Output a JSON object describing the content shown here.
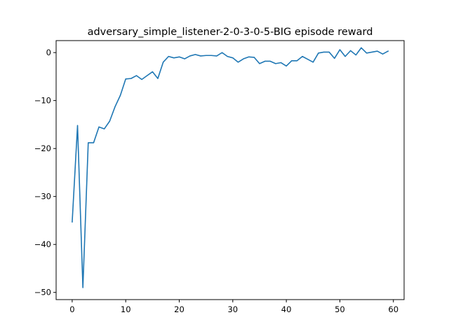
{
  "chart_data": {
    "type": "line",
    "title": "adversary_simple_listener-2-0-3-0-5-BIG episode reward",
    "xlabel": "",
    "ylabel": "",
    "xlim": [
      -3.0,
      62.0
    ],
    "ylim": [
      -51.5,
      2.5
    ],
    "xticks": [
      0,
      10,
      20,
      30,
      40,
      50,
      60
    ],
    "yticks": [
      0,
      -10,
      -20,
      -30,
      -40,
      -50
    ],
    "xtick_labels": [
      "0",
      "10",
      "20",
      "30",
      "40",
      "50",
      "60"
    ],
    "ytick_labels": [
      "0",
      "−10",
      "−20",
      "−30",
      "−40",
      "−50"
    ],
    "grid": false,
    "series": [
      {
        "color": "#1f77b4",
        "x": [
          0,
          1,
          2,
          3,
          4,
          5,
          6,
          7,
          8,
          9,
          10,
          11,
          12,
          13,
          14,
          15,
          16,
          17,
          18,
          19,
          20,
          21,
          22,
          23,
          24,
          25,
          26,
          27,
          28,
          29,
          30,
          31,
          32,
          33,
          34,
          35,
          36,
          37,
          38,
          39,
          40,
          41,
          42,
          43,
          44,
          45,
          46,
          47,
          48,
          49,
          50,
          51,
          52,
          53,
          54,
          55,
          56,
          57,
          58,
          59
        ],
        "y": [
          -35.3,
          -15.2,
          -49.0,
          -18.8,
          -18.8,
          -15.5,
          -15.9,
          -14.3,
          -11.3,
          -8.9,
          -5.5,
          -5.4,
          -4.8,
          -5.6,
          -4.8,
          -4.0,
          -5.4,
          -2.0,
          -0.8,
          -1.1,
          -0.9,
          -1.3,
          -0.7,
          -0.4,
          -0.7,
          -0.6,
          -0.6,
          -0.7,
          0.0,
          -0.8,
          -1.1,
          -2.0,
          -1.3,
          -0.9,
          -1.0,
          -2.3,
          -1.8,
          -1.8,
          -2.3,
          -2.1,
          -2.8,
          -1.7,
          -1.7,
          -0.8,
          -1.4,
          -2.0,
          -0.1,
          0.1,
          0.1,
          -1.2,
          0.6,
          -0.8,
          0.4,
          -0.5,
          1.0,
          -0.1,
          0.1,
          0.3,
          -0.3,
          0.3
        ]
      }
    ]
  }
}
